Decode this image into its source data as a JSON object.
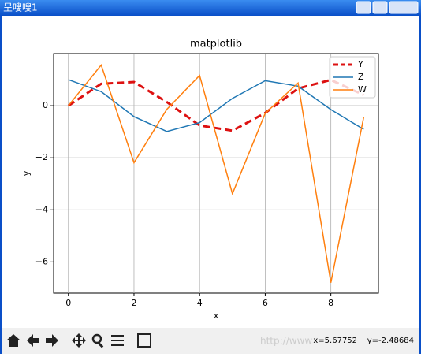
{
  "window_title": "呈嗖嗖1",
  "status": "x=5.67752    y=-2.48684",
  "watermark": "http://www",
  "chart_data": {
    "type": "line",
    "title": "matplotlib",
    "xlabel": "x",
    "ylabel": "y",
    "x": [
      0,
      1,
      2,
      3,
      4,
      5,
      6,
      7,
      8,
      9
    ],
    "series": [
      {
        "name": "Y",
        "color": "#dd1111",
        "dashed": true,
        "values": [
          0,
          0.84,
          0.91,
          0.14,
          -0.76,
          -0.96,
          -0.28,
          0.66,
          0.99,
          0.41
        ]
      },
      {
        "name": "Z",
        "color": "#1f77b4",
        "values": [
          1,
          0.54,
          -0.42,
          -0.99,
          -0.65,
          0.28,
          0.96,
          0.75,
          -0.15,
          -0.91
        ]
      },
      {
        "name": "W",
        "color": "#ff7f0e",
        "values": [
          0,
          1.56,
          -2.19,
          -0.14,
          1.16,
          -3.38,
          -0.29,
          0.87,
          -6.8,
          -0.45
        ]
      }
    ],
    "xlim": [
      -0.45,
      9.45
    ],
    "ylim": [
      -7.2,
      2.0
    ],
    "xticks": [
      0,
      2,
      4,
      6,
      8
    ],
    "yticks": [
      {
        "value": -6,
        "label": "−6"
      },
      {
        "value": -4,
        "label": "−4"
      },
      {
        "value": -2,
        "label": "−2"
      },
      0
    ],
    "grid": true,
    "legend": "upper-right"
  }
}
